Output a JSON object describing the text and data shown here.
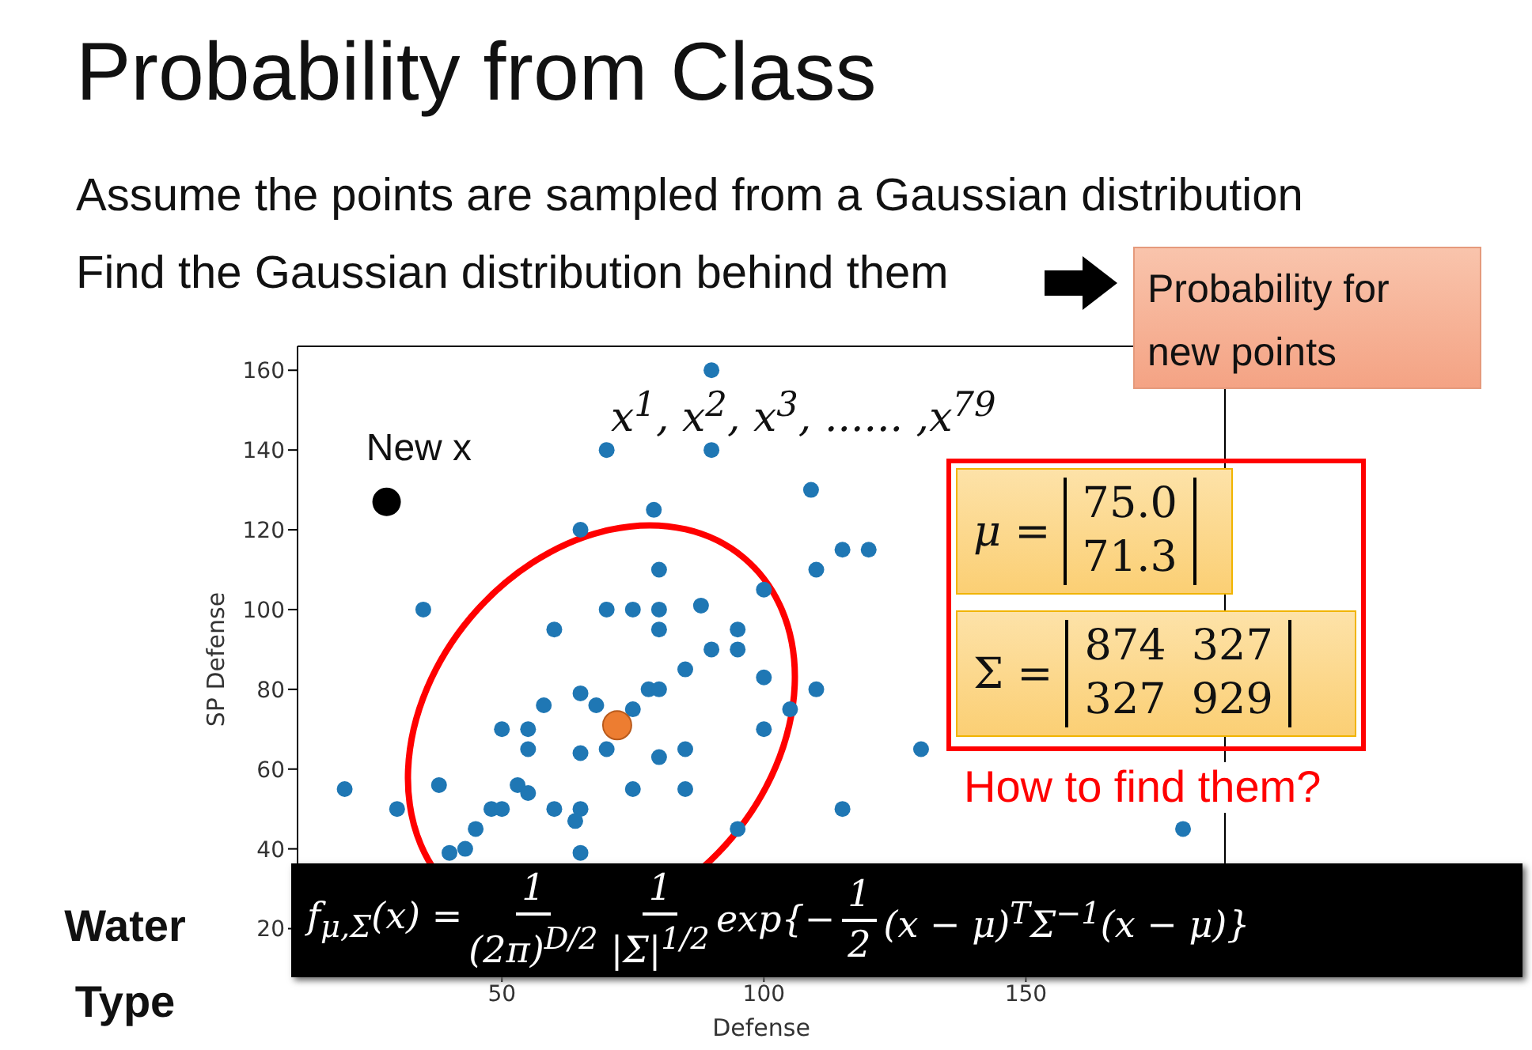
{
  "chart_data": {
    "type": "scatter",
    "title": "Probability from Class",
    "xlabel": "Defense",
    "ylabel": "SP Defense",
    "xlim": [
      11,
      188
    ],
    "xticks": [
      50,
      100,
      150
    ],
    "ylim": [
      9,
      166
    ],
    "yticks": [
      20,
      40,
      60,
      80,
      100,
      120,
      140,
      160
    ],
    "marker": "circle",
    "series": [
      {
        "color": "#1f77b4",
        "x": [
          90,
          70,
          90,
          79,
          65,
          80,
          100,
          35,
          70,
          75,
          80,
          88,
          80,
          60,
          95,
          95,
          90,
          85,
          100,
          65,
          78,
          80,
          58,
          68,
          75,
          50,
          55,
          55,
          65,
          70,
          80,
          85,
          100,
          20,
          38,
          53,
          55,
          75,
          85,
          30,
          48,
          50,
          60,
          65,
          64,
          45,
          40,
          43,
          65,
          95,
          109,
          115,
          120,
          110,
          110,
          105,
          130,
          115,
          180
        ],
        "values": [
          160,
          140,
          140,
          125,
          120,
          110,
          105,
          100,
          100,
          100,
          100,
          101,
          95,
          95,
          95,
          90,
          90,
          85,
          83,
          79,
          80,
          80,
          76,
          76,
          75,
          70,
          70,
          65,
          64,
          65,
          63,
          65,
          70,
          55,
          56,
          56,
          54,
          55,
          55,
          50,
          50,
          50,
          50,
          50,
          47,
          45,
          39,
          40,
          39,
          45,
          130,
          115,
          115,
          110,
          80,
          75,
          65,
          50,
          45
        ]
      },
      {
        "color": "#ed7d31",
        "x": [
          72
        ],
        "values": [
          71
        ]
      },
      {
        "color": "#000000",
        "x": [
          28
        ],
        "values": [
          127
        ]
      }
    ],
    "annotations": [
      "Assume the points are sampled from a Gaussian distribution",
      "Find the Gaussian distribution behind them",
      "Probability for new points",
      "x$^{1}$, x$^{2}$, x$^{3}$, ...... ,x$^{79}$",
      {
        "text": "New x",
        "x": 28,
        "y": 127
      },
      "μ =",
      "75.0",
      "71.3",
      "Σ =",
      "874",
      "327",
      "327",
      "929",
      "How to find them?",
      "Water Type",
      "f$_{μ,Σ}$(x) =",
      "1",
      "(2π)$^{D/2}$",
      "1",
      "|Σ|$^{1/2}$",
      "exp{−",
      "1",
      "2",
      "(x − μ)$^{T}$Σ$^{−1}$(x − μ)}"
    ]
  }
}
